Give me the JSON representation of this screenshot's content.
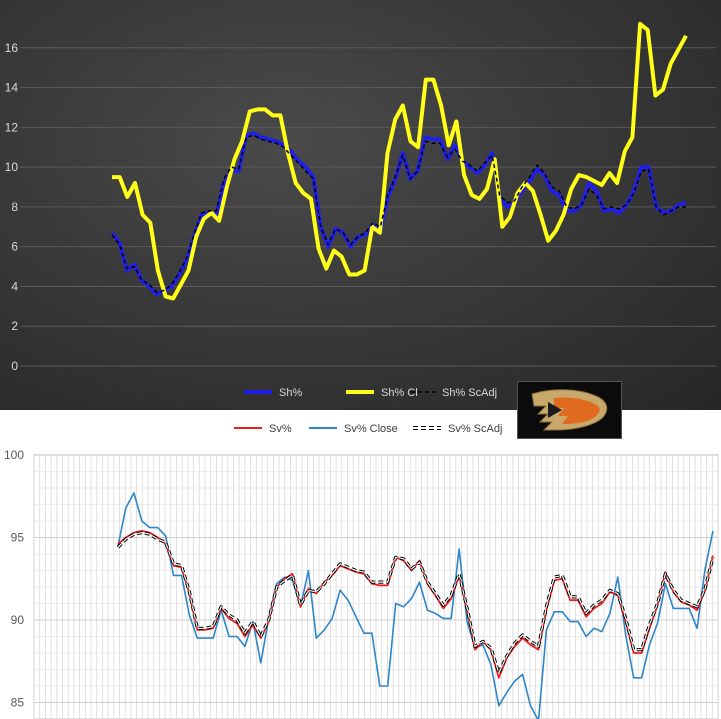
{
  "colors": {
    "sh": "#1f1fe6",
    "sh_cl": "#ffff1a",
    "sh_adj": "#000000",
    "sv": "#e62020",
    "sv_close": "#2e86c8",
    "sv_adj": "#000000",
    "logo_gold": "#c9a86b",
    "logo_orange": "#e06a1e"
  },
  "logo": {
    "icon": "ducks-webbed-d-logo-icon"
  },
  "chart_data": [
    {
      "type": "line",
      "ylim": [
        0,
        18
      ],
      "yticks": [
        "0",
        "2",
        "4",
        "6",
        "8",
        "10",
        "12",
        "14",
        "16"
      ],
      "grid": true,
      "legend": "bottom",
      "legend_entries": [
        "Sh%",
        "Sh% Cl",
        "Sh% ScAdj"
      ],
      "series": [
        {
          "name": "Sh%",
          "values": [
            6.7,
            6.2,
            4.8,
            5.1,
            4.3,
            4.0,
            3.6,
            3.8,
            4.0,
            4.6,
            5.3,
            6.5,
            7.6,
            7.7,
            7.6,
            9.2,
            9.8,
            9.8,
            11.6,
            11.7,
            11.5,
            11.4,
            11.3,
            11.1,
            10.8,
            10.3,
            10.0,
            9.5,
            7.0,
            6.0,
            6.9,
            6.7,
            6.0,
            6.5,
            6.6,
            7.1,
            6.8,
            8.5,
            9.4,
            10.7,
            9.4,
            9.8,
            11.5,
            11.4,
            11.4,
            10.4,
            11.1,
            10.3,
            10.0,
            9.7,
            10.1,
            10.7,
            8.5,
            8.0,
            8.2,
            8.8,
            9.3,
            9.9,
            9.6,
            8.8,
            8.6,
            7.8,
            7.8,
            8.1,
            9.2,
            8.8,
            7.8,
            7.9,
            7.7,
            8.1,
            8.8,
            10.0,
            10.0,
            8.0,
            7.7,
            7.8,
            8.1,
            8.2
          ]
        },
        {
          "name": "Sh% Cl",
          "values": [
            9.5,
            9.5,
            8.5,
            9.2,
            7.6,
            7.2,
            4.8,
            3.5,
            3.4,
            4.1,
            4.8,
            6.5,
            7.4,
            7.7,
            7.3,
            9.0,
            10.4,
            11.3,
            12.8,
            12.9,
            12.9,
            12.6,
            12.6,
            10.7,
            9.2,
            8.7,
            8.4,
            5.9,
            4.9,
            5.8,
            5.5,
            4.6,
            4.6,
            4.8,
            7.0,
            6.7,
            10.7,
            12.4,
            13.1,
            11.3,
            11.0,
            14.4,
            14.4,
            13.1,
            11.1,
            12.3,
            9.6,
            8.6,
            8.4,
            8.9,
            10.4,
            7.0,
            7.5,
            8.7,
            9.2,
            8.8,
            7.6,
            6.3,
            6.8,
            7.6,
            8.9,
            9.6,
            9.5,
            9.3,
            9.1,
            9.7,
            9.2,
            10.8,
            11.5,
            17.2,
            16.9,
            13.6,
            13.9,
            15.2,
            15.9,
            16.6
          ]
        },
        {
          "name": "Sh% ScAdj",
          "values": [
            6.6,
            6.1,
            4.9,
            5.0,
            4.3,
            4.1,
            3.7,
            3.8,
            4.1,
            4.7,
            5.4,
            6.6,
            7.7,
            7.8,
            7.8,
            9.4,
            10.0,
            9.9,
            11.5,
            11.6,
            11.4,
            11.3,
            11.2,
            11.0,
            10.6,
            10.2,
            9.8,
            9.4,
            7.0,
            6.1,
            6.9,
            6.7,
            6.1,
            6.5,
            6.7,
            7.2,
            7.0,
            8.6,
            9.5,
            10.6,
            9.4,
            9.8,
            11.3,
            11.2,
            11.2,
            10.5,
            10.9,
            10.3,
            10.1,
            9.8,
            10.2,
            10.6,
            8.6,
            8.2,
            8.3,
            9.0,
            9.5,
            10.1,
            9.7,
            9.0,
            8.8,
            8.0,
            7.9,
            8.1,
            8.9,
            8.6,
            7.9,
            8.0,
            7.9,
            8.1,
            8.7,
            9.8,
            9.9,
            8.0,
            7.6,
            7.8,
            8.0,
            8.0
          ]
        }
      ]
    },
    {
      "type": "line",
      "ylim": [
        84,
        100
      ],
      "yticks": [
        "85",
        "90",
        "95",
        "100"
      ],
      "grid": true,
      "legend": "top",
      "legend_entries": [
        "Sv%",
        "Sv% Close",
        "Sv% ScAdj"
      ],
      "series": [
        {
          "name": "Sv%",
          "values": [
            94.6,
            95.0,
            95.3,
            95.4,
            95.3,
            95.0,
            94.6,
            93.3,
            93.2,
            91.6,
            89.4,
            89.4,
            89.5,
            90.7,
            90.1,
            89.8,
            89.0,
            89.7,
            88.9,
            89.9,
            92.0,
            92.5,
            92.8,
            90.8,
            91.9,
            91.6,
            92.3,
            92.7,
            93.3,
            93.1,
            92.9,
            92.8,
            92.2,
            92.1,
            92.1,
            93.8,
            93.6,
            93.0,
            93.6,
            92.2,
            91.5,
            90.7,
            91.3,
            92.7,
            90.6,
            88.2,
            88.7,
            88.2,
            86.5,
            87.7,
            88.4,
            88.9,
            88.5,
            88.2,
            90.6,
            92.4,
            92.5,
            91.2,
            91.2,
            90.2,
            90.7,
            91.0,
            91.7,
            91.5,
            89.9,
            88.0,
            88.0,
            89.5,
            90.9,
            92.9,
            91.7,
            91.1,
            90.9,
            90.6,
            91.8,
            93.9
          ]
        },
        {
          "name": "Sv% Close",
          "values": [
            94.5,
            96.8,
            97.7,
            96.0,
            95.6,
            95.6,
            95.1,
            92.7,
            92.7,
            90.3,
            88.9,
            88.9,
            88.9,
            90.6,
            89.0,
            89.0,
            88.4,
            89.9,
            87.4,
            90.1,
            92.2,
            92.6,
            92.4,
            90.8,
            93.0,
            88.9,
            89.4,
            90.1,
            91.8,
            91.2,
            90.2,
            89.2,
            89.2,
            86.0,
            86.0,
            91.0,
            90.8,
            91.3,
            92.3,
            90.6,
            90.4,
            90.1,
            90.1,
            94.3,
            89.9,
            88.3,
            88.5,
            87.3,
            84.8,
            85.6,
            86.3,
            86.7,
            84.8,
            83.9,
            89.4,
            90.5,
            90.5,
            89.9,
            89.9,
            89.0,
            89.5,
            89.3,
            90.4,
            92.6,
            89.1,
            86.5,
            86.5,
            88.5,
            89.8,
            92.2,
            90.7,
            90.7,
            90.7,
            89.5,
            93.1,
            95.4
          ]
        },
        {
          "name": "Sv% ScAdj",
          "values": [
            94.4,
            94.9,
            95.2,
            95.3,
            95.2,
            94.9,
            94.7,
            93.4,
            93.3,
            91.7,
            89.5,
            89.5,
            89.6,
            90.8,
            90.3,
            90.0,
            89.2,
            89.9,
            89.0,
            90.0,
            92.0,
            92.4,
            92.7,
            90.9,
            91.8,
            91.7,
            92.2,
            92.8,
            93.4,
            93.2,
            93.0,
            92.9,
            92.3,
            92.3,
            92.3,
            93.8,
            93.7,
            93.1,
            93.5,
            92.3,
            91.6,
            90.9,
            91.5,
            92.8,
            90.7,
            88.4,
            88.7,
            88.3,
            86.8,
            87.8,
            88.6,
            89.1,
            88.7,
            88.4,
            90.8,
            92.6,
            92.7,
            91.4,
            91.4,
            90.4,
            90.9,
            91.2,
            91.8,
            91.6,
            90.1,
            88.2,
            88.2,
            89.7,
            91.0,
            92.8,
            91.8,
            91.2,
            91.0,
            90.8,
            91.9,
            93.8
          ]
        }
      ]
    }
  ]
}
